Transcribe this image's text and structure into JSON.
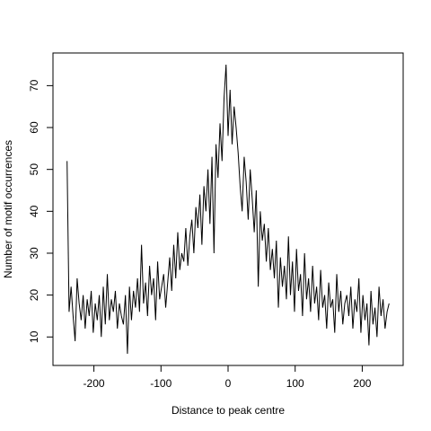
{
  "chart_data": {
    "type": "line",
    "xlabel": "Distance to peak centre",
    "ylabel": "Number of motif occurrences",
    "color": "#000000",
    "xlim": [
      -261,
      261
    ],
    "ylim": [
      3.2,
      77.8
    ],
    "xticks": [
      -200,
      -100,
      0,
      100,
      200
    ],
    "yticks": [
      10,
      20,
      30,
      40,
      50,
      60,
      70
    ],
    "x": [
      -240,
      -237,
      -234,
      -231,
      -228,
      -225,
      -222,
      -219,
      -216,
      -213,
      -210,
      -207,
      -204,
      -201,
      -198,
      -195,
      -192,
      -189,
      -186,
      -183,
      -180,
      -177,
      -174,
      -171,
      -168,
      -165,
      -162,
      -159,
      -156,
      -153,
      -150,
      -147,
      -144,
      -141,
      -138,
      -135,
      -132,
      -129,
      -126,
      -123,
      -120,
      -117,
      -114,
      -111,
      -108,
      -105,
      -102,
      -99,
      -96,
      -93,
      -90,
      -87,
      -84,
      -81,
      -78,
      -75,
      -72,
      -69,
      -66,
      -63,
      -60,
      -57,
      -54,
      -51,
      -48,
      -45,
      -42,
      -39,
      -36,
      -33,
      -30,
      -27,
      -24,
      -21,
      -18,
      -15,
      -12,
      -9,
      -6,
      -3,
      0,
      3,
      6,
      9,
      12,
      15,
      18,
      21,
      24,
      27,
      30,
      33,
      36,
      39,
      42,
      45,
      48,
      51,
      54,
      57,
      60,
      63,
      66,
      69,
      72,
      75,
      78,
      81,
      84,
      87,
      90,
      93,
      96,
      99,
      102,
      105,
      108,
      111,
      114,
      117,
      120,
      123,
      126,
      129,
      132,
      135,
      138,
      141,
      144,
      147,
      150,
      153,
      156,
      159,
      162,
      165,
      168,
      171,
      174,
      177,
      180,
      183,
      186,
      189,
      192,
      195,
      198,
      201,
      204,
      207,
      210,
      213,
      216,
      219,
      222,
      225,
      228,
      231,
      234,
      237,
      240
    ],
    "values": [
      52,
      16,
      22,
      15,
      9,
      24,
      18,
      14,
      20,
      12,
      19,
      15,
      21,
      11,
      18,
      14,
      20,
      10,
      22,
      13,
      25,
      14,
      19,
      16,
      21,
      12,
      18,
      15,
      13,
      20,
      6,
      22,
      14,
      21,
      17,
      24,
      16,
      32,
      18,
      23,
      15,
      27,
      20,
      24,
      14,
      28,
      19,
      22,
      25,
      17,
      23,
      29,
      21,
      32,
      24,
      35,
      26,
      30,
      28,
      36,
      27,
      34,
      38,
      30,
      41,
      36,
      44,
      32,
      46,
      40,
      50,
      37,
      53,
      30,
      56,
      48,
      61,
      52,
      67,
      75,
      58,
      69,
      56,
      65,
      60,
      54,
      46,
      40,
      53,
      47,
      38,
      50,
      43,
      35,
      45,
      22,
      40,
      33,
      37,
      28,
      36,
      26,
      31,
      24,
      33,
      17,
      29,
      22,
      27,
      19,
      34,
      20,
      28,
      16,
      31,
      21,
      25,
      15,
      30,
      19,
      24,
      16,
      27,
      18,
      22,
      14,
      26,
      17,
      20,
      12,
      23,
      17,
      19,
      11,
      25,
      16,
      21,
      13,
      18,
      20,
      15,
      22,
      12,
      19,
      16,
      24,
      11,
      20,
      14,
      18,
      8,
      21,
      13,
      17,
      10,
      22,
      15,
      19,
      12,
      16,
      18
    ]
  }
}
